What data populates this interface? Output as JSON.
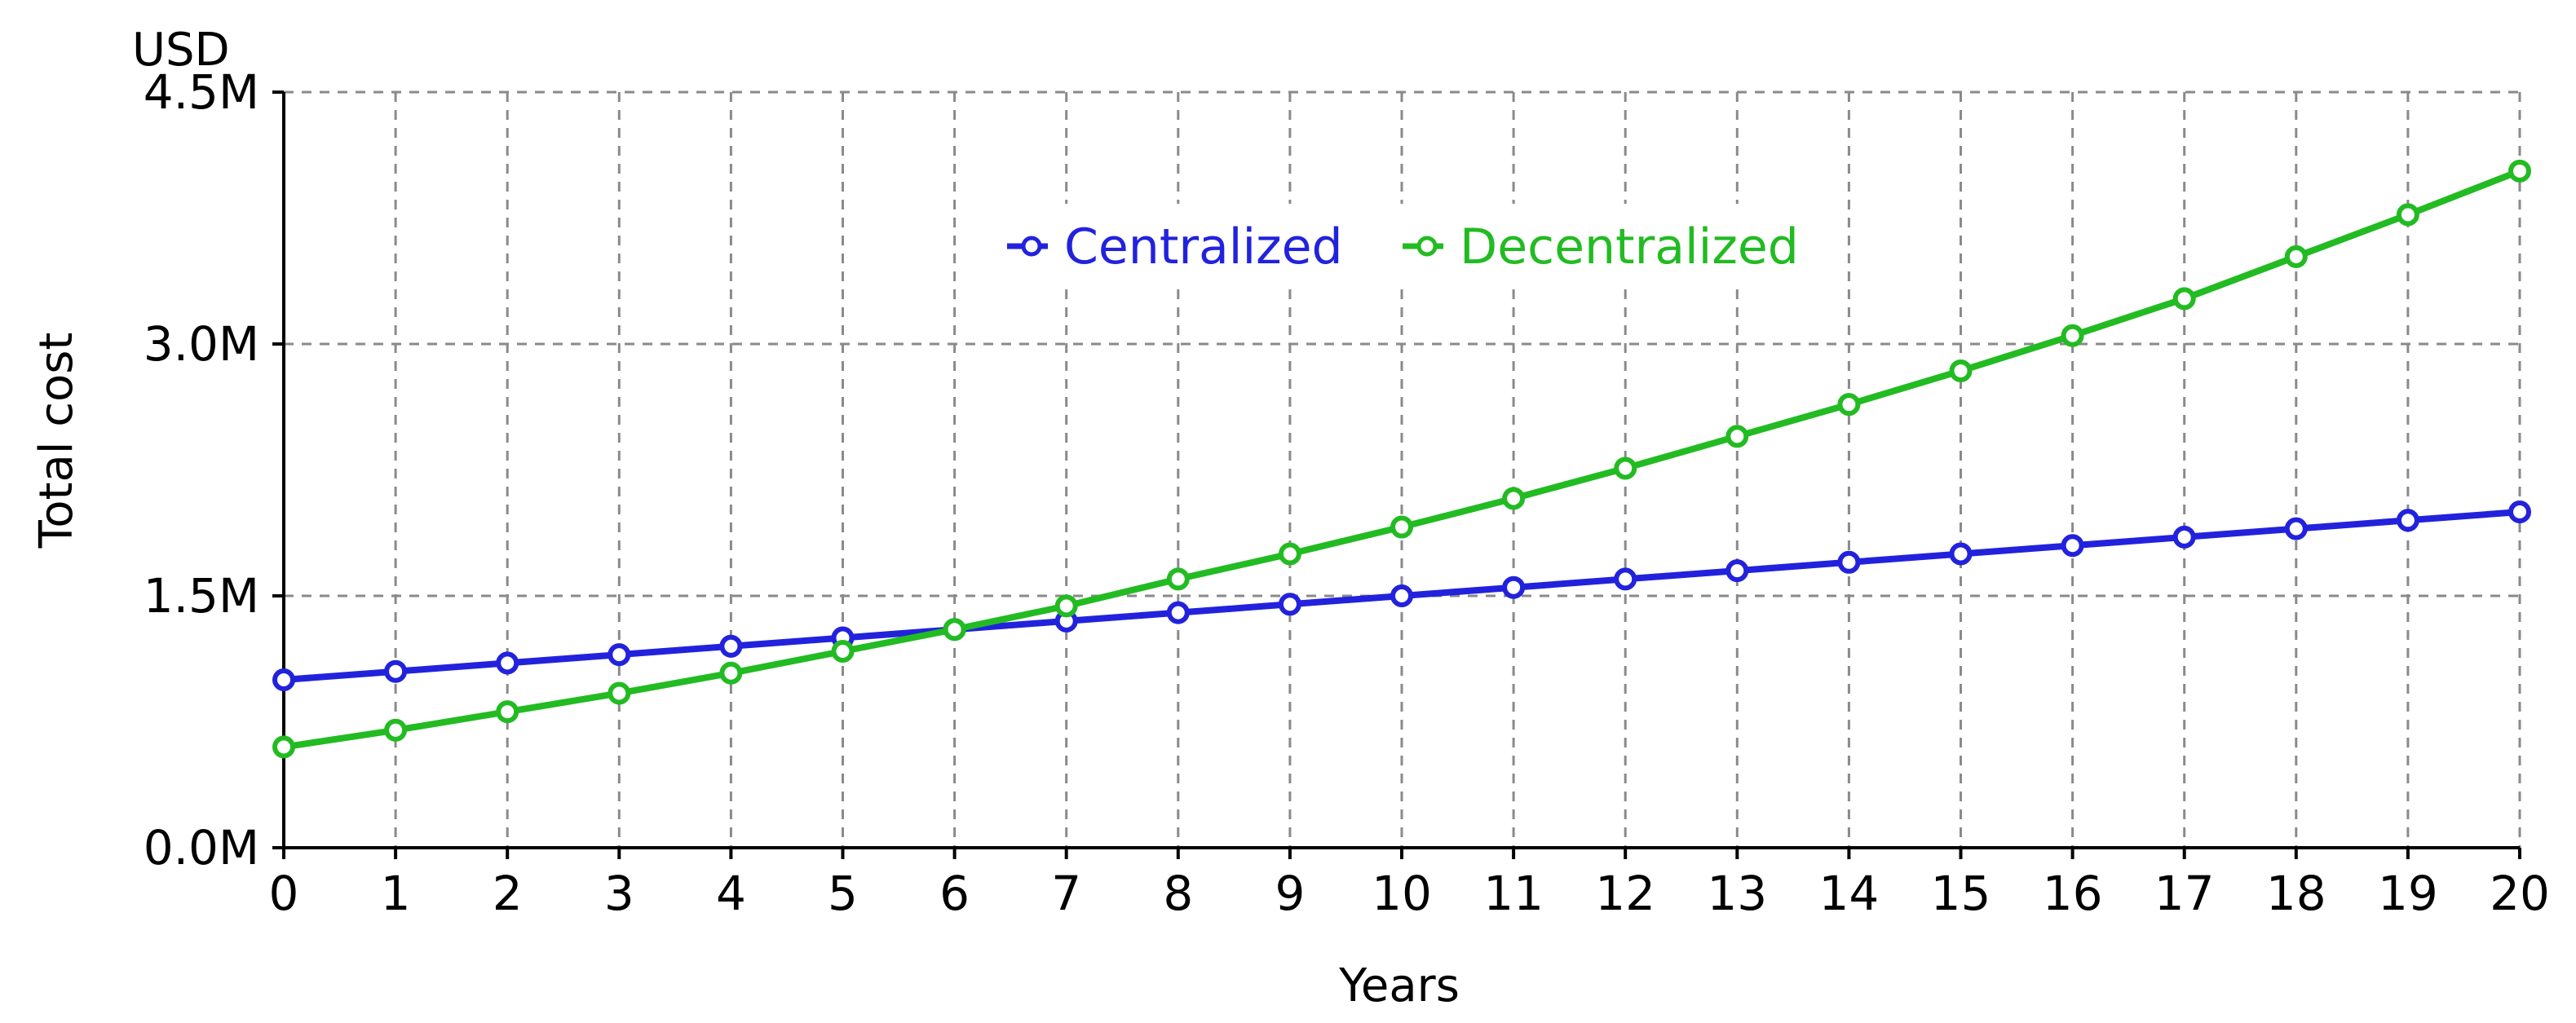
{
  "chart_data": {
    "type": "line",
    "title": "",
    "xlabel": "Years",
    "ylabel": "Total cost",
    "unit_label": "USD",
    "x": [
      0,
      1,
      2,
      3,
      4,
      5,
      6,
      7,
      8,
      9,
      10,
      11,
      12,
      13,
      14,
      15,
      16,
      17,
      18,
      19,
      20
    ],
    "xlim": [
      0,
      20
    ],
    "ylim": [
      0,
      4.5
    ],
    "yticks": [
      0,
      1.5,
      3.0,
      4.5
    ],
    "ytick_labels": [
      "0.0M",
      "1.5M",
      "3.0M",
      "4.5M"
    ],
    "grid": true,
    "legend_position": "top-center",
    "series": [
      {
        "name": "Centralized",
        "color": "#2222dd",
        "marker": "circle-open",
        "values": [
          1.0,
          1.05,
          1.1,
          1.15,
          1.2,
          1.25,
          1.3,
          1.35,
          1.4,
          1.45,
          1.5,
          1.55,
          1.6,
          1.65,
          1.7,
          1.75,
          1.8,
          1.85,
          1.9,
          1.95,
          2.0
        ]
      },
      {
        "name": "Decentralized",
        "color": "#22bb22",
        "marker": "circle-open",
        "values": [
          0.6,
          0.7,
          0.81,
          0.92,
          1.04,
          1.17,
          1.3,
          1.44,
          1.6,
          1.75,
          1.91,
          2.08,
          2.26,
          2.45,
          2.64,
          2.84,
          3.05,
          3.27,
          3.52,
          3.77,
          4.03
        ]
      }
    ]
  }
}
